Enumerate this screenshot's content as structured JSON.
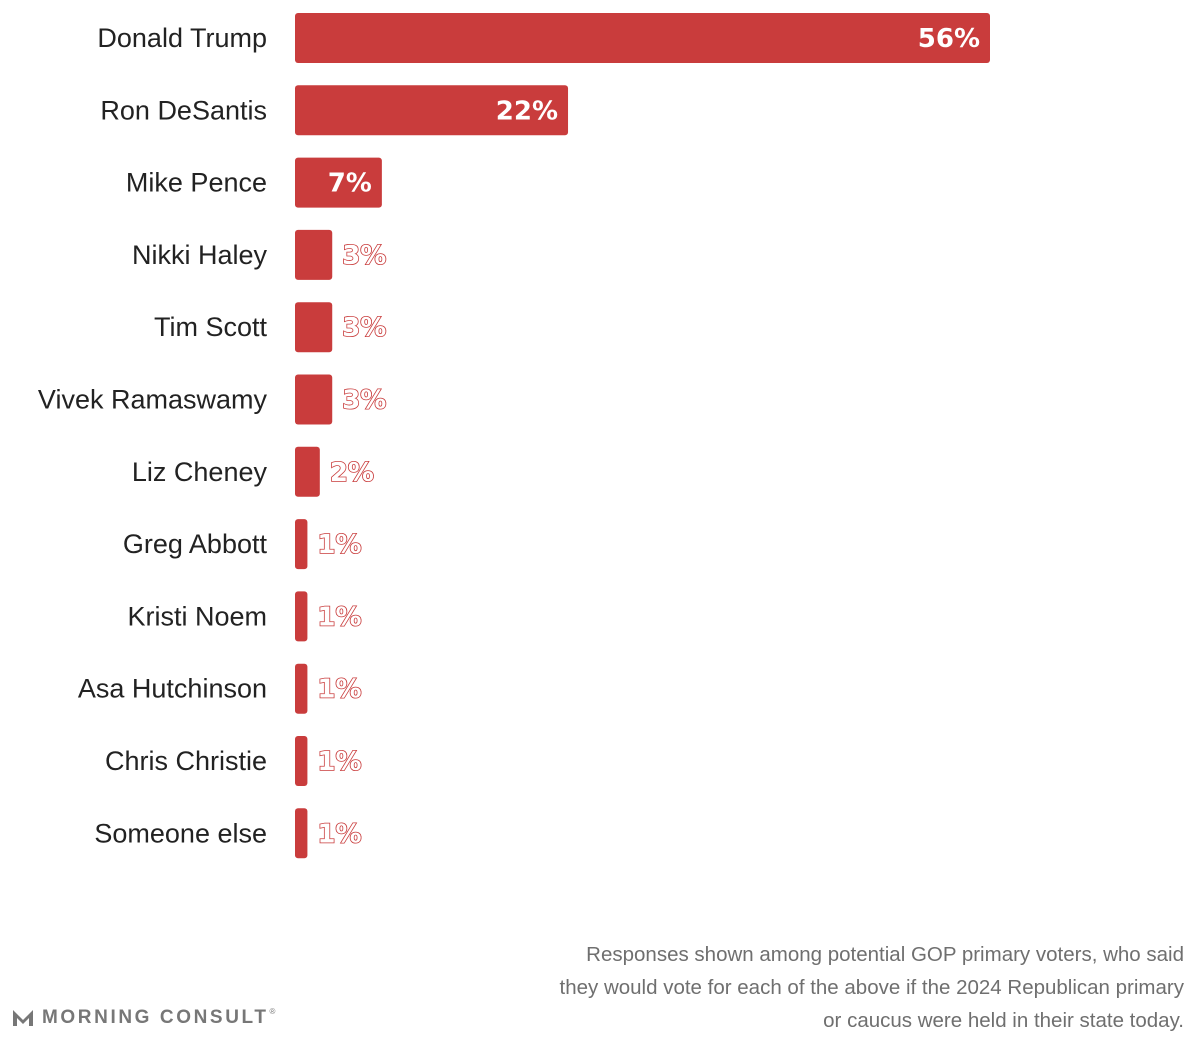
{
  "chart_data": {
    "type": "bar",
    "orientation": "horizontal",
    "categories": [
      "Donald Trump",
      "Ron DeSantis",
      "Mike Pence",
      "Nikki Haley",
      "Tim Scott",
      "Vivek Ramaswamy",
      "Liz Cheney",
      "Greg Abbott",
      "Kristi Noem",
      "Asa Hutchinson",
      "Chris Christie",
      "Someone else"
    ],
    "values": [
      56,
      22,
      7,
      3,
      3,
      3,
      2,
      1,
      1,
      1,
      1,
      1
    ],
    "value_labels": [
      "56%",
      "22%",
      "7%",
      "3%",
      "3%",
      "3%",
      "2%",
      "1%",
      "1%",
      "1%",
      "1%",
      "1%"
    ],
    "unit": "%",
    "xlim": [
      0,
      56
    ],
    "grid": false,
    "bar_color": "#c93c3c"
  },
  "footnote": {
    "lines": [
      "Responses shown among potential GOP primary voters, who said",
      "they would vote for each of the above if the 2024 Republican primary",
      "or caucus were held in their state today."
    ]
  },
  "brand": {
    "name": "MORNING CONSULT",
    "mark": "®",
    "logo_icon": "morning-consult-m-logo-icon"
  }
}
